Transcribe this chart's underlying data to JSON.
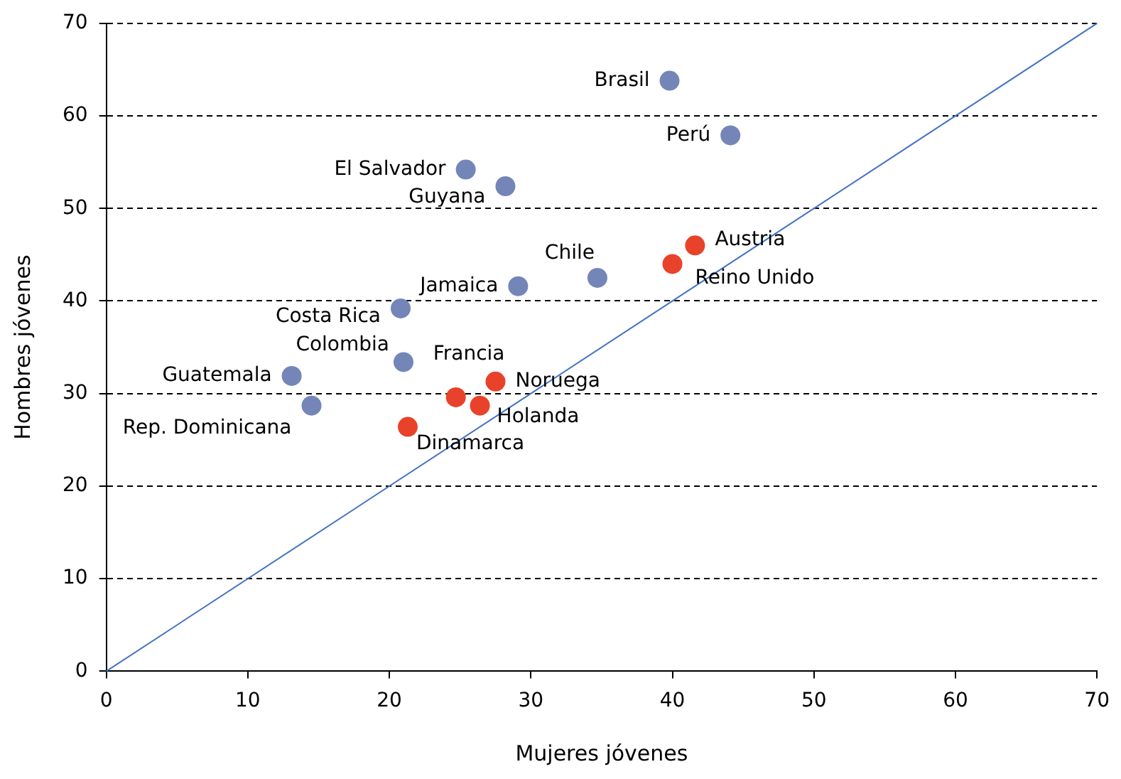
{
  "chart_data": {
    "type": "scatter",
    "xlabel": "Mujeres jóvenes",
    "ylabel": "Hombres jóvenes",
    "xlim": [
      0,
      70
    ],
    "ylim": [
      0,
      70
    ],
    "xticks": [
      0,
      10,
      20,
      30,
      40,
      50,
      60,
      70
    ],
    "yticks": [
      0,
      10,
      20,
      30,
      40,
      50,
      60,
      70
    ],
    "grid": "y",
    "line_style": "dashed",
    "legend": false,
    "marker": "circle",
    "series": [
      {
        "color": "#7486b8",
        "x": [
          39.8,
          44.1,
          25.4,
          28.2,
          34.7,
          29.1,
          20.8,
          21.0,
          13.1,
          14.5
        ],
        "values": [
          63.8,
          57.9,
          54.2,
          52.4,
          42.5,
          41.6,
          39.2,
          33.4,
          31.9,
          28.7
        ]
      },
      {
        "color": "#e8432a",
        "x": [
          41.6,
          40.0,
          27.5,
          24.7,
          26.4,
          21.3
        ],
        "values": [
          46.0,
          44.0,
          31.3,
          29.6,
          28.7,
          26.4
        ]
      },
      {
        "type": "line",
        "color": "#4472c4",
        "marker": "none",
        "line_style": "solid",
        "x": [
          0,
          70
        ],
        "values": [
          0,
          70
        ]
      }
    ],
    "annotations": [
      {
        "text": "Brasil",
        "x": 39.8,
        "y": 63.8
      },
      {
        "text": "Perú",
        "x": 44.1,
        "y": 57.9
      },
      {
        "text": "El Salvador",
        "x": 25.4,
        "y": 54.2
      },
      {
        "text": "Guyana",
        "x": 28.2,
        "y": 52.4
      },
      {
        "text": "Chile",
        "x": 34.7,
        "y": 42.5
      },
      {
        "text": "Jamaica",
        "x": 29.1,
        "y": 41.6
      },
      {
        "text": "Costa Rica",
        "x": 20.8,
        "y": 39.2
      },
      {
        "text": "Colombia",
        "x": 21.0,
        "y": 33.4
      },
      {
        "text": "Guatemala",
        "x": 13.1,
        "y": 31.9
      },
      {
        "text": "Rep. Dominicana",
        "x": 14.5,
        "y": 28.7
      },
      {
        "text": "Austria",
        "x": 41.6,
        "y": 46.0
      },
      {
        "text": "Reino Unido",
        "x": 40.0,
        "y": 44.0
      },
      {
        "text": "Noruega",
        "x": 27.5,
        "y": 31.3
      },
      {
        "text": "Francia",
        "x": 24.7,
        "y": 29.6
      },
      {
        "text": "Holanda",
        "x": 26.4,
        "y": 28.7
      },
      {
        "text": "Dinamarca",
        "x": 21.3,
        "y": 26.4
      }
    ]
  }
}
